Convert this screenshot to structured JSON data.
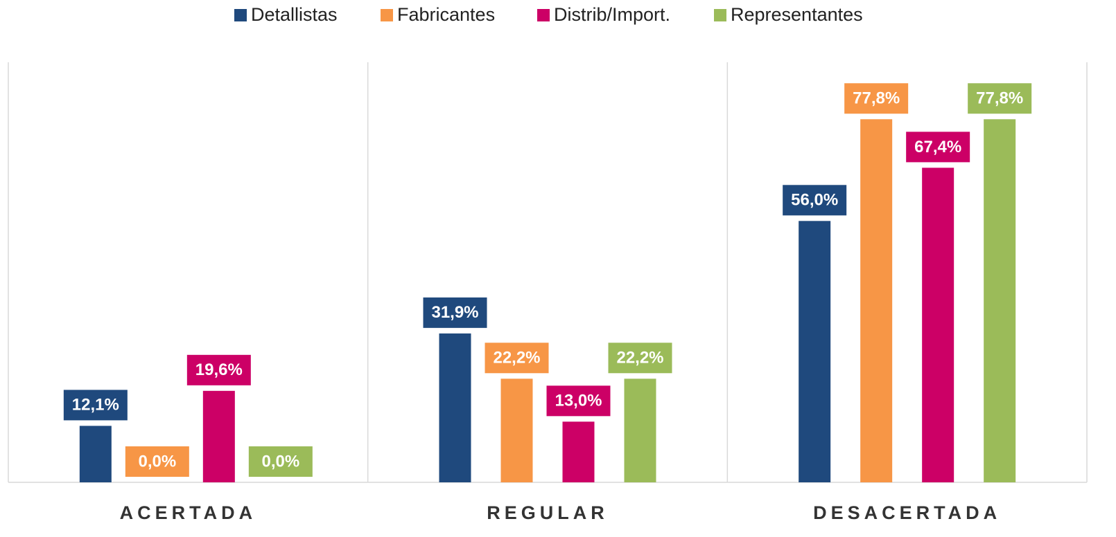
{
  "chart_data": {
    "type": "bar",
    "categories": [
      "ACERTADA",
      "REGULAR",
      "DESACERTADA"
    ],
    "series": [
      {
        "name": "Detallistas",
        "color": "#1f497d",
        "values": [
          12.1,
          31.9,
          56.0
        ],
        "value_labels": [
          "12,1%",
          "31,9%",
          "56,0%"
        ]
      },
      {
        "name": "Fabricantes",
        "color": "#f79646",
        "values": [
          0.0,
          22.2,
          77.8
        ],
        "value_labels": [
          "0,0%",
          "22,2%",
          "77,8%"
        ]
      },
      {
        "name": "Distrib/Import.",
        "color": "#cc0066",
        "values": [
          19.6,
          13.0,
          67.4
        ],
        "value_labels": [
          "19,6%",
          "13,0%",
          "67,4%"
        ]
      },
      {
        "name": "Representantes",
        "color": "#9bbb59",
        "values": [
          0.0,
          22.2,
          77.8
        ],
        "value_labels": [
          "0,0%",
          "22,2%",
          "77,8%"
        ]
      }
    ],
    "ylim": [
      0,
      90
    ],
    "legend": "top"
  }
}
